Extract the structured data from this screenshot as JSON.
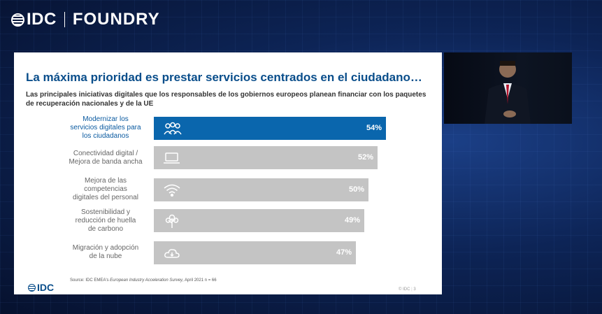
{
  "brand": {
    "left": "IDC",
    "right": "FOUNDRY"
  },
  "slide": {
    "title": "La máxima prioridad es prestar servicios centrados en el ciudadano…",
    "subtitle": "Las principales iniciativas digitales que los responsables de los gobiernos europeos planean financiar con los paquetes de recuperación nacionales y de la UE",
    "source_prefix": "Source: IDC EMEA's ",
    "source_italic": "European Industry Acceleration Survey",
    "source_suffix": ", April 2021 n = 66",
    "footer_logo": "IDC",
    "page_brand": "© IDC",
    "page_number": "3"
  },
  "chart_data": {
    "type": "bar",
    "orientation": "horizontal",
    "title": "",
    "categories": [
      "Modernizar los servicios digitales para los ciudadanos",
      "Conectividad digital / Mejora de banda ancha",
      "Mejora de las competencias digitales del personal",
      "Sostenibilidad y reducción de huella de carbono",
      "Migración y adopción de la nube"
    ],
    "category_lines": [
      [
        "Modernizar los",
        "servicios digitales para",
        "los ciudadanos"
      ],
      [
        "Conectividad digital /",
        "Mejora de banda ancha"
      ],
      [
        "Mejora de las",
        "competencias",
        "digitales del personal"
      ],
      [
        "Sostenibilidad y",
        "reducción de huella",
        "de carbono"
      ],
      [
        "Migración y adopción",
        "de la nube"
      ]
    ],
    "values": [
      54,
      52,
      50,
      49,
      47
    ],
    "value_labels": [
      "54%",
      "52%",
      "50%",
      "49%",
      "47%"
    ],
    "icons": [
      "people-icon",
      "laptop-icon",
      "wifi-icon",
      "tree-icon",
      "cloud-icon"
    ],
    "highlight_index": 0,
    "colors": {
      "highlight": "#0a66ad",
      "default": "#c4c4c4"
    },
    "xlim": [
      0,
      54
    ]
  }
}
